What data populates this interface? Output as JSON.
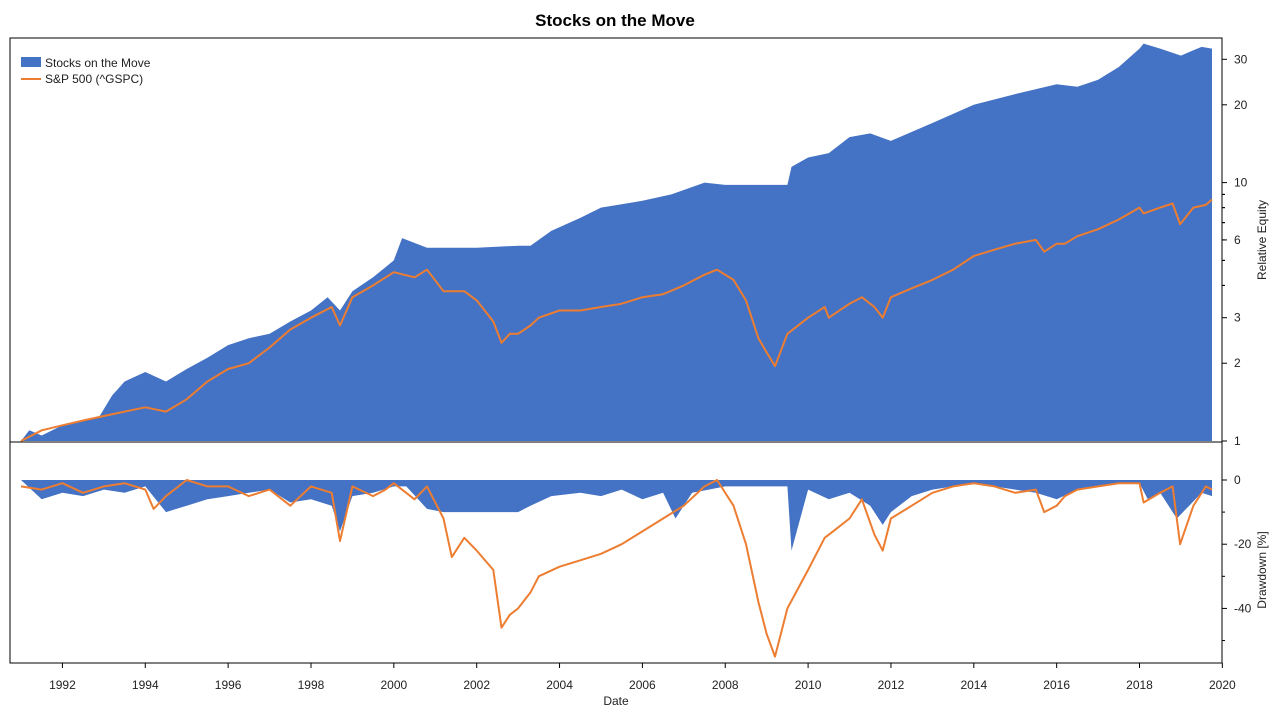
{
  "chart_data": {
    "type": "area",
    "title": "Stocks on the Move",
    "xlabel": "Date",
    "xlim": [
      1991.0,
      2019.75
    ],
    "x_ticks": [
      "1992",
      "1994",
      "1996",
      "1998",
      "2000",
      "2002",
      "2004",
      "2006",
      "2008",
      "2010",
      "2012",
      "2014",
      "2016",
      "2018",
      "2020"
    ],
    "legend_position": "top-left",
    "colors": {
      "strategy": "#4472C4",
      "benchmark": "#ED7D31"
    },
    "equity_panel": {
      "ylabel": "Relative Equity",
      "yscale": "log",
      "ylim": [
        1,
        35
      ],
      "y_ticks": [
        "1",
        "2",
        "3",
        "6",
        "10",
        "20",
        "30"
      ],
      "series": [
        {
          "name": "Stocks on the Move",
          "style": "area",
          "x": [
            1991.0,
            1991.2,
            1991.5,
            1992.0,
            1992.5,
            1992.9,
            1993.2,
            1993.5,
            1994.0,
            1994.5,
            1995.0,
            1995.5,
            1996.0,
            1996.5,
            1997.0,
            1997.5,
            1998.0,
            1998.4,
            1998.7,
            1999.0,
            1999.5,
            2000.0,
            2000.2,
            2000.8,
            2001.5,
            2002.0,
            2003.0,
            2003.3,
            2003.8,
            2004.5,
            2005.0,
            2006.0,
            2006.7,
            2007.5,
            2008.0,
            2009.0,
            2009.5,
            2009.6,
            2010.0,
            2010.5,
            2011.0,
            2011.5,
            2012.0,
            2013.0,
            2014.0,
            2015.0,
            2016.0,
            2016.5,
            2017.0,
            2017.5,
            2018.0,
            2018.1,
            2018.5,
            2019.0,
            2019.3,
            2019.5,
            2019.75
          ],
          "y": [
            1.0,
            1.1,
            1.05,
            1.15,
            1.2,
            1.25,
            1.5,
            1.7,
            1.85,
            1.7,
            1.9,
            2.1,
            2.35,
            2.5,
            2.6,
            2.9,
            3.2,
            3.6,
            3.2,
            3.8,
            4.3,
            5.0,
            6.1,
            5.6,
            5.6,
            5.6,
            5.7,
            5.7,
            6.5,
            7.3,
            8.0,
            8.5,
            9.0,
            10.0,
            9.8,
            9.8,
            9.8,
            11.5,
            12.5,
            13.0,
            15.0,
            15.5,
            14.5,
            17.0,
            20.0,
            22.0,
            24.0,
            23.5,
            25.0,
            28.0,
            33.0,
            34.5,
            33.0,
            31.0,
            32.5,
            33.5,
            33.0
          ]
        },
        {
          "name": "S&P 500 (^GSPC)",
          "style": "line",
          "x": [
            1991.0,
            1991.5,
            1992.0,
            1992.5,
            1993.0,
            1993.5,
            1994.0,
            1994.5,
            1995.0,
            1995.5,
            1996.0,
            1996.5,
            1997.0,
            1997.5,
            1998.0,
            1998.5,
            1998.7,
            1999.0,
            1999.5,
            2000.0,
            2000.5,
            2000.8,
            2001.2,
            2001.7,
            2002.0,
            2002.4,
            2002.6,
            2002.8,
            2003.0,
            2003.3,
            2003.5,
            2004.0,
            2004.5,
            2005.0,
            2005.5,
            2006.0,
            2006.5,
            2007.0,
            2007.5,
            2007.8,
            2008.2,
            2008.5,
            2008.8,
            2009.0,
            2009.2,
            2009.5,
            2010.0,
            2010.4,
            2010.5,
            2011.0,
            2011.3,
            2011.6,
            2011.8,
            2012.0,
            2012.5,
            2013.0,
            2013.5,
            2014.0,
            2014.5,
            2015.0,
            2015.5,
            2015.7,
            2016.0,
            2016.2,
            2016.5,
            2017.0,
            2017.5,
            2018.0,
            2018.1,
            2018.5,
            2018.8,
            2018.98,
            2019.3,
            2019.6,
            2019.75
          ],
          "y": [
            1.0,
            1.1,
            1.15,
            1.2,
            1.25,
            1.3,
            1.35,
            1.3,
            1.45,
            1.7,
            1.9,
            2.0,
            2.3,
            2.7,
            3.0,
            3.3,
            2.8,
            3.6,
            4.0,
            4.5,
            4.3,
            4.6,
            3.8,
            3.8,
            3.5,
            2.9,
            2.4,
            2.6,
            2.6,
            2.8,
            3.0,
            3.2,
            3.2,
            3.3,
            3.4,
            3.6,
            3.7,
            4.0,
            4.4,
            4.6,
            4.2,
            3.5,
            2.5,
            2.2,
            1.95,
            2.6,
            3.0,
            3.3,
            3.0,
            3.4,
            3.6,
            3.3,
            3.0,
            3.6,
            3.9,
            4.2,
            4.6,
            5.2,
            5.5,
            5.8,
            6.0,
            5.4,
            5.8,
            5.8,
            6.2,
            6.6,
            7.2,
            8.0,
            7.6,
            8.0,
            8.3,
            6.9,
            8.0,
            8.2,
            8.6
          ]
        }
      ]
    },
    "drawdown_panel": {
      "ylabel": "Drawdown [%]",
      "ylim": [
        -57,
        0
      ],
      "y_ticks": [
        "0",
        "-20",
        "-40"
      ],
      "series": [
        {
          "name": "Stocks on the Move",
          "style": "area",
          "x": [
            1991.0,
            1991.5,
            1992.0,
            1992.5,
            1993.0,
            1993.5,
            1994.0,
            1994.5,
            1995.0,
            1995.5,
            1996.0,
            1996.5,
            1997.0,
            1997.5,
            1998.0,
            1998.5,
            1998.7,
            1999.0,
            1999.5,
            2000.0,
            2000.3,
            2000.8,
            2001.2,
            2002.0,
            2003.0,
            2003.3,
            2003.8,
            2004.5,
            2005.0,
            2005.5,
            2006.0,
            2006.5,
            2006.8,
            2007.2,
            2007.6,
            2008.0,
            2009.0,
            2009.5,
            2009.6,
            2010.0,
            2010.5,
            2011.0,
            2011.5,
            2011.8,
            2012.0,
            2012.5,
            2013.0,
            2013.5,
            2014.0,
            2014.5,
            2015.0,
            2015.5,
            2016.0,
            2016.5,
            2017.0,
            2017.5,
            2018.0,
            2018.2,
            2018.5,
            2018.9,
            2019.2,
            2019.5,
            2019.75
          ],
          "y": [
            0,
            -6,
            -4,
            -5,
            -3,
            -4,
            -2,
            -10,
            -8,
            -6,
            -5,
            -4,
            -3,
            -7,
            -6,
            -8,
            -16,
            -5,
            -4,
            -2,
            -2,
            -9,
            -10,
            -10,
            -10,
            -8,
            -5,
            -4,
            -5,
            -3,
            -6,
            -4,
            -12,
            -4,
            -3,
            -2,
            -2,
            -2,
            -22,
            -3,
            -6,
            -4,
            -8,
            -14,
            -10,
            -5,
            -3,
            -2,
            -1,
            -2,
            -3,
            -4,
            -6,
            -3,
            -2,
            -1,
            -1,
            -6,
            -4,
            -12,
            -8,
            -4,
            -5
          ]
        },
        {
          "name": "S&P 500 (^GSPC)",
          "style": "line",
          "x": [
            1991.0,
            1991.5,
            1992.0,
            1992.5,
            1993.0,
            1993.5,
            1994.0,
            1994.2,
            1994.5,
            1995.0,
            1995.5,
            1996.0,
            1996.5,
            1997.0,
            1997.5,
            1998.0,
            1998.5,
            1998.7,
            1999.0,
            1999.5,
            1999.8,
            2000.0,
            2000.5,
            2000.8,
            2001.2,
            2001.4,
            2001.7,
            2002.0,
            2002.4,
            2002.6,
            2002.8,
            2003.0,
            2003.3,
            2003.5,
            2004.0,
            2004.5,
            2005.0,
            2005.5,
            2006.0,
            2006.5,
            2007.0,
            2007.5,
            2007.8,
            2008.2,
            2008.5,
            2008.8,
            2009.0,
            2009.2,
            2009.5,
            2010.0,
            2010.4,
            2010.6,
            2011.0,
            2011.3,
            2011.6,
            2011.8,
            2012.0,
            2012.5,
            2013.0,
            2013.5,
            2014.0,
            2014.5,
            2015.0,
            2015.5,
            2015.7,
            2016.0,
            2016.2,
            2016.5,
            2017.0,
            2017.5,
            2018.0,
            2018.1,
            2018.5,
            2018.8,
            2018.98,
            2019.3,
            2019.6,
            2019.75
          ],
          "y": [
            -2,
            -3,
            -1,
            -4,
            -2,
            -1,
            -3,
            -9,
            -5,
            0,
            -2,
            -2,
            -5,
            -3,
            -8,
            -2,
            -4,
            -19,
            -2,
            -5,
            -3,
            -1,
            -6,
            -2,
            -12,
            -24,
            -18,
            -22,
            -28,
            -46,
            -42,
            -40,
            -35,
            -30,
            -27,
            -25,
            -23,
            -20,
            -16,
            -12,
            -8,
            -2,
            0,
            -8,
            -20,
            -38,
            -48,
            -55,
            -40,
            -28,
            -18,
            -16,
            -12,
            -6,
            -17,
            -22,
            -12,
            -8,
            -4,
            -2,
            -1,
            -2,
            -4,
            -3,
            -10,
            -8,
            -5,
            -3,
            -2,
            -1,
            -1,
            -7,
            -4,
            -2,
            -20,
            -8,
            -2,
            -3
          ]
        }
      ]
    }
  }
}
